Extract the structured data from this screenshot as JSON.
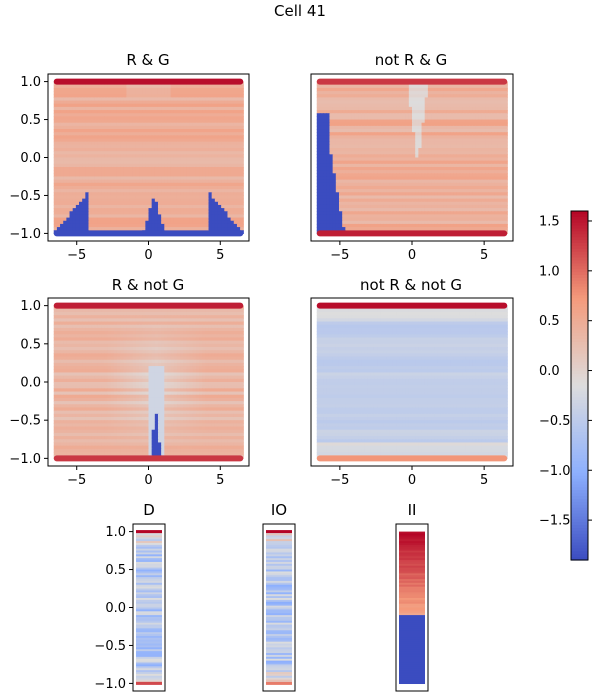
{
  "figure_title": "Cell 41",
  "chart_data": [
    {
      "type": "heatmap",
      "title": "R & G",
      "x_ticks": [
        -5,
        0,
        5
      ],
      "y_ticks": [
        -1.0,
        -0.5,
        0.0,
        0.5,
        1.0
      ],
      "y_tick_labels": [
        "−1.0",
        "−0.5",
        "0.0",
        "0.5",
        "1.0"
      ],
      "xlim": [
        -7,
        7
      ],
      "ylim": [
        -1.1,
        1.1
      ],
      "x_extent": [
        -6.6,
        6.6
      ],
      "pattern": "rg",
      "edge_rows": [
        {
          "y": 1.0,
          "value": 1.55
        },
        {
          "y": -1.0,
          "value": -1.9
        }
      ],
      "body_value": 0.45
    },
    {
      "type": "heatmap",
      "title": "not R & G",
      "x_ticks": [
        -5,
        0,
        5
      ],
      "xlim": [
        -7,
        7
      ],
      "ylim": [
        -1.1,
        1.1
      ],
      "x_extent": [
        -6.6,
        6.6
      ],
      "pattern": "notrg",
      "edge_rows": [
        {
          "y": 1.0,
          "value": 1.3
        },
        {
          "y": -1.0,
          "value": 1.45
        }
      ],
      "body_value": 0.45
    },
    {
      "type": "heatmap",
      "title": "R & not G",
      "x_ticks": [
        -5,
        0,
        5
      ],
      "y_ticks": [
        -1.0,
        -0.5,
        0.0,
        0.5,
        1.0
      ],
      "y_tick_labels": [
        "−1.0",
        "−0.5",
        "0.0",
        "0.5",
        "1.0"
      ],
      "xlim": [
        -7,
        7
      ],
      "ylim": [
        -1.1,
        1.1
      ],
      "x_extent": [
        -6.6,
        6.6
      ],
      "pattern": "rnotg",
      "edge_rows": [
        {
          "y": 1.0,
          "value": 1.45
        },
        {
          "y": -1.0,
          "value": 1.3
        }
      ],
      "body_value": 0.35
    },
    {
      "type": "heatmap",
      "title": "not R & not G",
      "x_ticks": [
        -5,
        0,
        5
      ],
      "xlim": [
        -7,
        7
      ],
      "ylim": [
        -1.1,
        1.1
      ],
      "x_extent": [
        -6.6,
        6.6
      ],
      "pattern": "notrnotg",
      "edge_rows": [
        {
          "y": 1.0,
          "value": 1.55
        },
        {
          "y": -1.0,
          "value": 0.75
        }
      ],
      "body_value": -0.45
    },
    {
      "type": "heatmap",
      "title": "D",
      "y_ticks": [
        -1.0,
        -0.5,
        0.0,
        0.5,
        1.0
      ],
      "y_tick_labels": [
        "−1.0",
        "−0.5",
        "0.0",
        "0.5",
        "1.0"
      ],
      "ylim": [
        -1.1,
        1.1
      ],
      "pattern": "strip_blue",
      "edge_rows": [
        {
          "y": 1.0,
          "value": 1.6
        },
        {
          "y": -1.0,
          "value": 1.2
        }
      ],
      "body_value": -0.6
    },
    {
      "type": "heatmap",
      "title": "IO",
      "ylim": [
        -1.1,
        1.1
      ],
      "pattern": "strip_blue",
      "edge_rows": [
        {
          "y": 1.0,
          "value": 1.6
        },
        {
          "y": -1.0,
          "value": 0.9
        }
      ],
      "body_value": -0.6
    },
    {
      "type": "heatmap",
      "title": "II",
      "ylim": [
        -1.1,
        1.1
      ],
      "pattern": "strip_ii",
      "split_y": -0.1,
      "upper_range": [
        0.6,
        1.6
      ],
      "lower_value": -1.9,
      "edge_rows": []
    },
    {
      "type": "colorbar",
      "vmin": -1.9,
      "vmax": 1.6,
      "ticks": [
        -1.5,
        -1.0,
        -0.5,
        0.0,
        0.5,
        1.0,
        1.5
      ],
      "tick_labels": [
        "−1.5",
        "−1.0",
        "−0.5",
        "0.0",
        "0.5",
        "1.0",
        "1.5"
      ]
    }
  ]
}
